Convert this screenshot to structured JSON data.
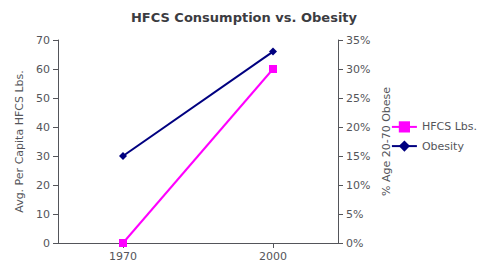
{
  "chart_data": {
    "type": "line",
    "title": "HFCS Consumption vs. Obesity",
    "x": [
      1970,
      2000
    ],
    "series": [
      {
        "name": "HFCS Lbs.",
        "color": "#FF00FF",
        "marker": "square",
        "values": [
          0,
          60
        ]
      },
      {
        "name": "Obesity",
        "color": "#000080",
        "marker": "diamond",
        "axis": "y2",
        "values": [
          0.15,
          0.33
        ]
      }
    ],
    "xlim": [
      1957,
      2013
    ],
    "xticks": [
      1970,
      2000
    ],
    "ylim": [
      0,
      70
    ],
    "yticks": [
      0,
      10,
      20,
      30,
      40,
      50,
      60,
      70
    ],
    "y2lim": [
      0,
      0.35
    ],
    "y2ticks": [
      {
        "value": 0.0,
        "label": "0%"
      },
      {
        "value": 0.05,
        "label": "5%"
      },
      {
        "value": 0.1,
        "label": "10%"
      },
      {
        "value": 0.15,
        "label": "15%"
      },
      {
        "value": 0.2,
        "label": "20%"
      },
      {
        "value": 0.25,
        "label": "25%"
      },
      {
        "value": 0.3,
        "label": "30%"
      },
      {
        "value": 0.35,
        "label": "35%"
      }
    ],
    "ylabel": "Avg. Per Capita HFCS Lbs.",
    "y2label": "% Age 20-70 Obese",
    "legend": "right",
    "grid": false
  }
}
